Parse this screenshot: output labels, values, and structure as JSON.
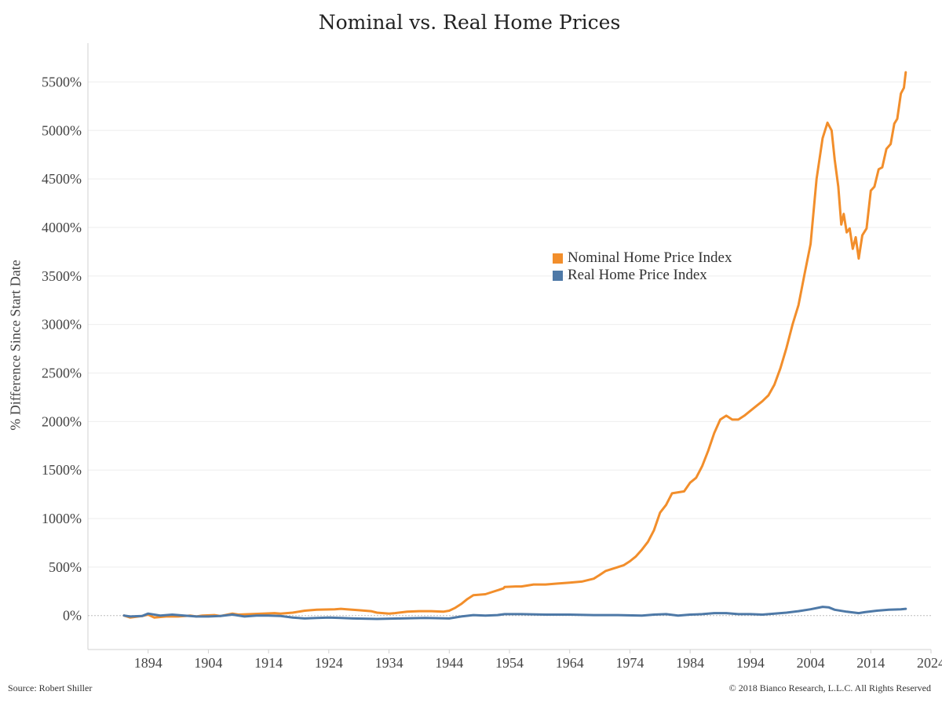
{
  "header": {
    "title": "Nominal vs. Real Home Prices"
  },
  "footer": {
    "source": "Source: Robert Shiller",
    "copyright": "© 2018 Bianco Research, L.L.C. All Rights Reserved"
  },
  "colors": {
    "nominal": "#f28e2b",
    "real": "#4e79a7",
    "grid": "#eeeeee",
    "axis": "#d0d0d0"
  },
  "chart_data": {
    "type": "line",
    "title": "Nominal vs. Real Home Prices",
    "xlabel": "",
    "ylabel": "% Difference Since Start Date",
    "xlim": [
      1884,
      2024
    ],
    "ylim": [
      -350,
      5900
    ],
    "x_ticks": [
      1894,
      1904,
      1914,
      1924,
      1934,
      1944,
      1954,
      1964,
      1974,
      1984,
      1994,
      2004,
      2014,
      2024
    ],
    "y_ticks": [
      0,
      500,
      1000,
      1500,
      2000,
      2500,
      3000,
      3500,
      4000,
      4500,
      5000,
      5500
    ],
    "y_tick_format": "percent",
    "grid": "horizontal",
    "legend_position": "center-right",
    "series": [
      {
        "name": "Nominal Home Price Index",
        "color": "#f28e2b",
        "points": [
          [
            1890,
            0
          ],
          [
            1891,
            -20
          ],
          [
            1893,
            -5
          ],
          [
            1894,
            10
          ],
          [
            1895,
            -20
          ],
          [
            1897,
            -10
          ],
          [
            1899,
            -10
          ],
          [
            1901,
            0
          ],
          [
            1902,
            -10
          ],
          [
            1903,
            0
          ],
          [
            1905,
            5
          ],
          [
            1906,
            -5
          ],
          [
            1908,
            20
          ],
          [
            1909,
            10
          ],
          [
            1911,
            15
          ],
          [
            1913,
            20
          ],
          [
            1915,
            25
          ],
          [
            1916,
            20
          ],
          [
            1918,
            30
          ],
          [
            1920,
            50
          ],
          [
            1922,
            60
          ],
          [
            1925,
            65
          ],
          [
            1926,
            70
          ],
          [
            1927,
            65
          ],
          [
            1929,
            55
          ],
          [
            1931,
            45
          ],
          [
            1932,
            30
          ],
          [
            1934,
            20
          ],
          [
            1935,
            25
          ],
          [
            1937,
            40
          ],
          [
            1939,
            45
          ],
          [
            1941,
            45
          ],
          [
            1943,
            40
          ],
          [
            1944,
            50
          ],
          [
            1945,
            80
          ],
          [
            1946,
            120
          ],
          [
            1947,
            170
          ],
          [
            1948,
            210
          ],
          [
            1950,
            220
          ],
          [
            1951,
            240
          ],
          [
            1953,
            280
          ],
          [
            1953.2,
            295
          ],
          [
            1955,
            300
          ],
          [
            1956,
            300
          ],
          [
            1958,
            320
          ],
          [
            1960,
            320
          ],
          [
            1962,
            330
          ],
          [
            1964,
            340
          ],
          [
            1966,
            350
          ],
          [
            1968,
            380
          ],
          [
            1969,
            420
          ],
          [
            1970,
            460
          ],
          [
            1972,
            500
          ],
          [
            1973,
            520
          ],
          [
            1974,
            560
          ],
          [
            1975,
            610
          ],
          [
            1976,
            680
          ],
          [
            1977,
            760
          ],
          [
            1978,
            880
          ],
          [
            1979,
            1060
          ],
          [
            1980,
            1140
          ],
          [
            1981,
            1260
          ],
          [
            1983,
            1280
          ],
          [
            1984,
            1370
          ],
          [
            1985,
            1420
          ],
          [
            1986,
            1540
          ],
          [
            1987,
            1700
          ],
          [
            1988,
            1880
          ],
          [
            1989,
            2020
          ],
          [
            1990,
            2060
          ],
          [
            1991,
            2020
          ],
          [
            1992,
            2020
          ],
          [
            1993,
            2060
          ],
          [
            1994,
            2110
          ],
          [
            1995,
            2160
          ],
          [
            1996,
            2210
          ],
          [
            1997,
            2270
          ],
          [
            1998,
            2380
          ],
          [
            1999,
            2550
          ],
          [
            2000,
            2760
          ],
          [
            2001,
            3000
          ],
          [
            2002,
            3200
          ],
          [
            2003,
            3520
          ],
          [
            2004,
            3830
          ],
          [
            2005,
            4500
          ],
          [
            2006,
            4920
          ],
          [
            2006.8,
            5080
          ],
          [
            2007.5,
            5000
          ],
          [
            2008,
            4700
          ],
          [
            2008.6,
            4420
          ],
          [
            2009.1,
            4030
          ],
          [
            2009.5,
            4140
          ],
          [
            2010,
            3950
          ],
          [
            2010.5,
            3990
          ],
          [
            2011,
            3780
          ],
          [
            2011.5,
            3900
          ],
          [
            2012,
            3680
          ],
          [
            2012.6,
            3920
          ],
          [
            2013.3,
            3990
          ],
          [
            2014,
            4380
          ],
          [
            2014.6,
            4420
          ],
          [
            2015.3,
            4600
          ],
          [
            2015.9,
            4620
          ],
          [
            2016.6,
            4810
          ],
          [
            2017.3,
            4860
          ],
          [
            2017.9,
            5070
          ],
          [
            2018.4,
            5120
          ],
          [
            2019,
            5380
          ],
          [
            2019.5,
            5440
          ],
          [
            2019.8,
            5600
          ]
        ]
      },
      {
        "name": "Real Home Price Index",
        "color": "#4e79a7",
        "points": [
          [
            1890,
            0
          ],
          [
            1891,
            -10
          ],
          [
            1893,
            -5
          ],
          [
            1894,
            20
          ],
          [
            1896,
            0
          ],
          [
            1898,
            10
          ],
          [
            1900,
            0
          ],
          [
            1902,
            -10
          ],
          [
            1904,
            -10
          ],
          [
            1906,
            -5
          ],
          [
            1908,
            10
          ],
          [
            1910,
            -10
          ],
          [
            1912,
            0
          ],
          [
            1914,
            0
          ],
          [
            1916,
            -5
          ],
          [
            1918,
            -20
          ],
          [
            1920,
            -30
          ],
          [
            1922,
            -25
          ],
          [
            1924,
            -20
          ],
          [
            1926,
            -25
          ],
          [
            1928,
            -30
          ],
          [
            1932,
            -35
          ],
          [
            1936,
            -30
          ],
          [
            1940,
            -25
          ],
          [
            1944,
            -30
          ],
          [
            1946,
            -10
          ],
          [
            1948,
            5
          ],
          [
            1950,
            0
          ],
          [
            1952,
            5
          ],
          [
            1953.2,
            15
          ],
          [
            1956,
            15
          ],
          [
            1960,
            10
          ],
          [
            1964,
            10
          ],
          [
            1968,
            5
          ],
          [
            1972,
            5
          ],
          [
            1976,
            0
          ],
          [
            1978,
            10
          ],
          [
            1980,
            15
          ],
          [
            1982,
            0
          ],
          [
            1984,
            10
          ],
          [
            1986,
            15
          ],
          [
            1988,
            25
          ],
          [
            1990,
            25
          ],
          [
            1992,
            15
          ],
          [
            1994,
            15
          ],
          [
            1996,
            10
          ],
          [
            1998,
            20
          ],
          [
            2000,
            30
          ],
          [
            2002,
            45
          ],
          [
            2004,
            65
          ],
          [
            2006,
            90
          ],
          [
            2007,
            85
          ],
          [
            2008,
            60
          ],
          [
            2010,
            40
          ],
          [
            2012,
            25
          ],
          [
            2013,
            35
          ],
          [
            2015,
            50
          ],
          [
            2017,
            60
          ],
          [
            2019,
            65
          ],
          [
            2019.8,
            70
          ]
        ]
      }
    ]
  }
}
